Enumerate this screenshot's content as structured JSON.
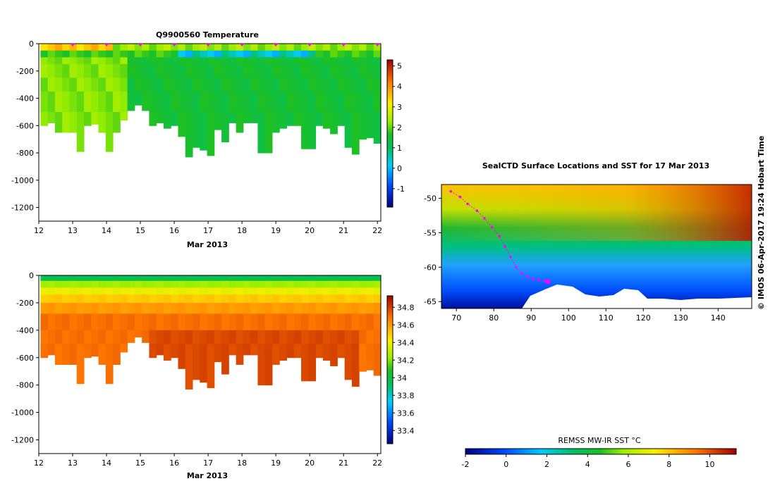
{
  "chart_data": [
    {
      "type": "heatmap",
      "title": "Q9900560  Temperature",
      "xlabel": "Mar 2013",
      "ylabel": "",
      "x_ticks": [
        "12",
        "13",
        "14",
        "15",
        "16",
        "17",
        "18",
        "19",
        "20",
        "21",
        "22"
      ],
      "y_ticks": [
        "0",
        "-200",
        "-400",
        "-600",
        "-800",
        "-1000",
        "-1200"
      ],
      "xlim": [
        12,
        22.1
      ],
      "ylim": [
        -1300,
        0
      ],
      "colorbar": {
        "ticks": [
          "-1",
          "0",
          "1",
          "2",
          "3",
          "4",
          "5"
        ],
        "range": [
          -1.9,
          5.3
        ]
      },
      "profile_max_depth_m": [
        600,
        580,
        650,
        650,
        650,
        790,
        600,
        590,
        650,
        790,
        650,
        560,
        490,
        450,
        490,
        600,
        580,
        620,
        600,
        680,
        830,
        760,
        780,
        820,
        630,
        720,
        580,
        650,
        580,
        580,
        800,
        800,
        650,
        620,
        600,
        600,
        770,
        770,
        600,
        620,
        660,
        600,
        760,
        810,
        700,
        690,
        730
      ],
      "surface_layer_temp": 2.0,
      "deep_layer_temp": 1.3
    },
    {
      "type": "heatmap",
      "title": "",
      "xlabel": "Mar 2013",
      "ylabel": "",
      "x_ticks": [
        "12",
        "13",
        "14",
        "15",
        "16",
        "17",
        "18",
        "19",
        "20",
        "21",
        "22"
      ],
      "y_ticks": [
        "0",
        "-200",
        "-400",
        "-600",
        "-800",
        "-1000",
        "-1200"
      ],
      "xlim": [
        12,
        22.1
      ],
      "ylim": [
        -1300,
        0
      ],
      "colorbar": {
        "ticks": [
          "33.4",
          "33.6",
          "33.8",
          "34",
          "34.2",
          "34.4",
          "34.6",
          "34.8"
        ],
        "range": [
          33.25,
          34.93
        ]
      },
      "surface_salinity": 33.95,
      "deep_salinity": 34.68
    },
    {
      "type": "heatmap",
      "title": "SealCTD Surface Locations and SST for 17 Mar 2013",
      "xlabel": "",
      "ylabel": "",
      "x_ticks": [
        "70",
        "80",
        "90",
        "100",
        "110",
        "120",
        "130",
        "140"
      ],
      "y_ticks": [
        "-50",
        "-55",
        "-60",
        "-65"
      ],
      "xlim": [
        66,
        149
      ],
      "ylim": [
        -66,
        -48
      ],
      "track_lon": [
        68.5,
        71,
        73,
        75.5,
        77.5,
        79.5,
        81.5,
        83,
        84.5,
        86,
        87.5,
        89,
        90.5,
        92,
        93.5,
        94.5
      ],
      "track_lat": [
        -49,
        -49.8,
        -50.8,
        -51.8,
        -52.9,
        -54.2,
        -55.5,
        -57,
        -58.5,
        -60,
        -60.9,
        -61.4,
        -61.7,
        -61.9,
        -62.0,
        -62.1
      ],
      "colorbar_label": "REMSS MW-IR SST °C",
      "colorbar": {
        "ticks": [
          "-2",
          "0",
          "2",
          "4",
          "6",
          "8",
          "10"
        ],
        "range": [
          -2,
          11.3
        ]
      }
    }
  ],
  "credit": "© IMOS 06-Apr-2017 19:24 Hobart Time"
}
